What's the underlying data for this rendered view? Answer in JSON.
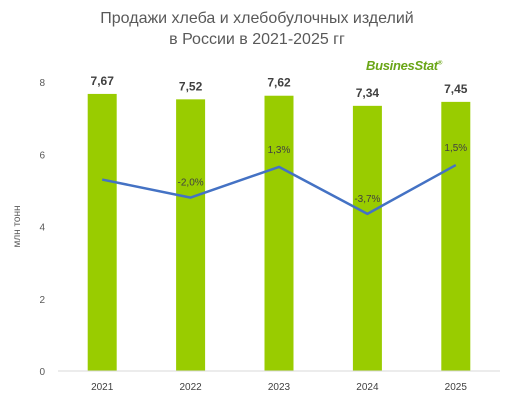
{
  "title_lines": [
    "Продажи хлеба и хлебобулочных изделий",
    "в России в 2021-2025 гг"
  ],
  "logo": "BusinesStat",
  "colors": {
    "bar": "#99cc00",
    "line": "#4472c4",
    "text": "#595959",
    "axis": "#d9d9d9"
  },
  "chart_data": {
    "type": "bar",
    "categories": [
      "2021",
      "2022",
      "2023",
      "2024",
      "2025"
    ],
    "series": [
      {
        "values": [
          7.67,
          7.52,
          7.62,
          7.34,
          7.45
        ],
        "labels": [
          "7,67",
          "7,52",
          "7,62",
          "7,34",
          "7,45"
        ]
      }
    ],
    "growth_line": {
      "values": [
        null,
        -2.0,
        1.3,
        -3.7,
        1.5
      ],
      "labels": [
        "",
        "-2,0%",
        "1,3%",
        "-3,7%",
        "1,5%"
      ],
      "line_points": [
        5.3,
        4.8,
        5.65,
        4.35,
        5.7
      ]
    },
    "ylabel": "млн тонн",
    "yticks": [
      "0",
      "2",
      "4",
      "6",
      "8"
    ],
    "ylim": [
      0,
      8
    ],
    "grid": false,
    "legend": "none"
  }
}
